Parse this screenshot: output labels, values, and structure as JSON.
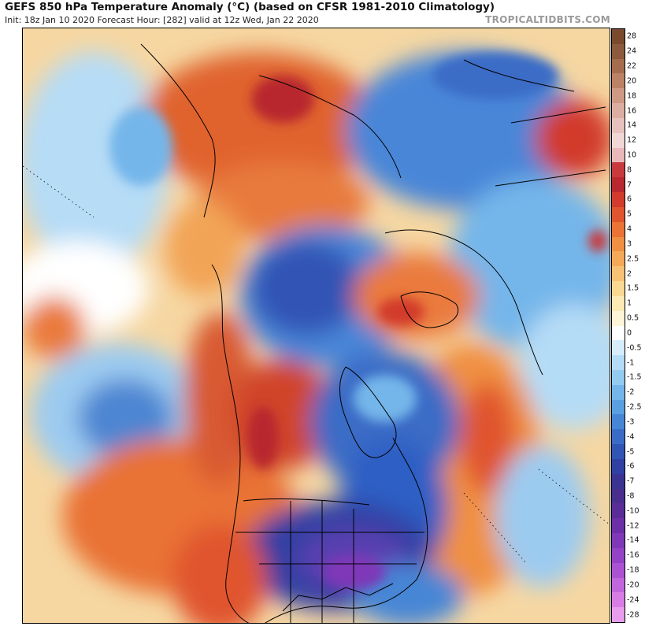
{
  "header": {
    "title": "GEFS 850 hPa Temperature Anomaly (°C) (based on CFSR 1981-2010 Climatology)",
    "subtitle": "Init: 18z Jan 10 2020   Forecast Hour: [282]   valid at 12z Wed, Jan 22 2020",
    "credit": "TROPICALTIDBITS.COM"
  },
  "map": {
    "projection": "north-polar-stereographic",
    "variable": "850 hPa temperature anomaly",
    "regions": [
      {
        "name": "central-eastern-united-states",
        "anomaly_c": -9,
        "color": "#5a3fb0"
      },
      {
        "name": "eastern-canada-hudson-bay",
        "anomaly_c": -4,
        "color": "#2f5fc4"
      },
      {
        "name": "western-canada-rockies",
        "anomaly_c": 5,
        "color": "#d0452c"
      },
      {
        "name": "alaska-bering-sea",
        "anomaly_c": 4,
        "color": "#e0642e"
      },
      {
        "name": "arctic-ocean-siberian-side",
        "anomaly_c": -3,
        "color": "#4a86d8"
      },
      {
        "name": "northern-siberia",
        "anomaly_c": -3,
        "color": "#3e7bd0"
      },
      {
        "name": "north-atlantic",
        "anomaly_c": 3,
        "color": "#ea7a3c"
      },
      {
        "name": "northeast-pacific",
        "anomaly_c": 3,
        "color": "#e97236"
      },
      {
        "name": "central-pacific",
        "anomaly_c": -2,
        "color": "#7cb4ea"
      }
    ]
  },
  "colorbar": {
    "labels": [
      "28",
      "24",
      "22",
      "20",
      "18",
      "16",
      "14",
      "12",
      "10",
      "8",
      "7",
      "6",
      "5",
      "4",
      "3",
      "2.5",
      "2",
      "1.5",
      "1",
      "0.5",
      "0",
      "-0.5",
      "-1",
      "-1.5",
      "-2",
      "-2.5",
      "-3",
      "-4",
      "-5",
      "-6",
      "-7",
      "-8",
      "-10",
      "-12",
      "-14",
      "-16",
      "-18",
      "-20",
      "-24",
      "-28"
    ],
    "colors": [
      "#7a4a2e",
      "#8c5a3c",
      "#a56d4e",
      "#bb8266",
      "#cf9a83",
      "#dcaea2",
      "#e7c2bd",
      "#f0d6d4",
      "#e9b8b8",
      "#c83a3e",
      "#b8282e",
      "#d23a2c",
      "#e0542e",
      "#ea7335",
      "#f09042",
      "#f4a958",
      "#f7c274",
      "#f9d992",
      "#fbeab3",
      "#fdf5d8",
      "#ffffff",
      "#d7ecfb",
      "#b5dcf6",
      "#93cbf1",
      "#74b6ea",
      "#5a9fe1",
      "#4686d5",
      "#3a6cc6",
      "#3155b5",
      "#3040a3",
      "#3a3392",
      "#4a2e8e",
      "#5a2c98",
      "#6c2fa7",
      "#7f38b7",
      "#9443c6",
      "#ab52d3",
      "#c266dd",
      "#d97de6",
      "#e89ced"
    ]
  }
}
